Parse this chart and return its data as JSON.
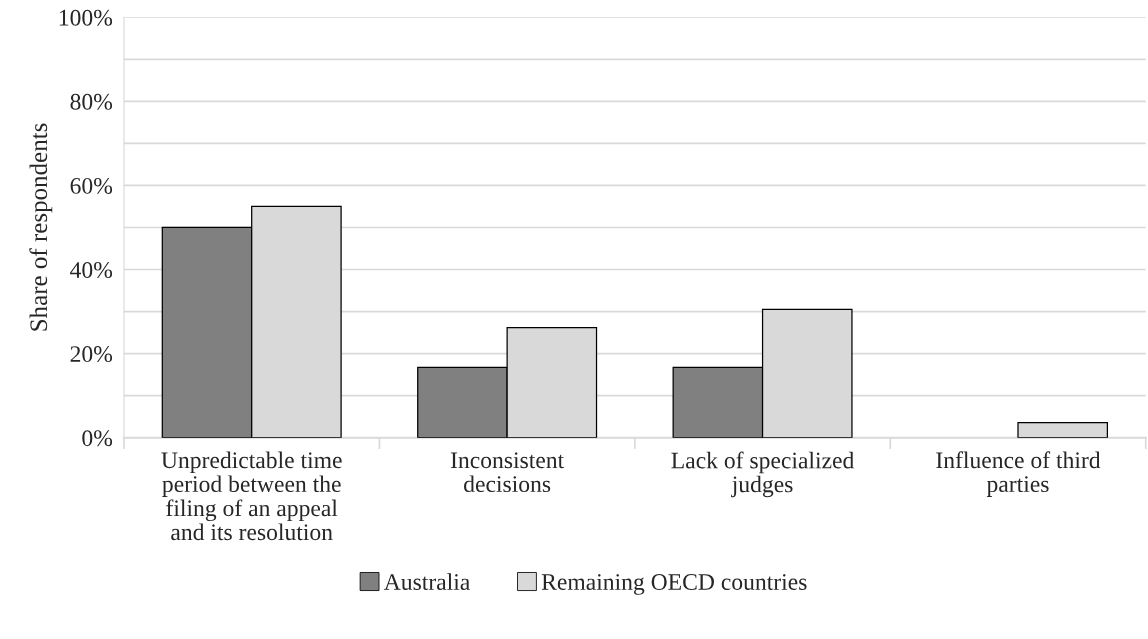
{
  "chart_data": {
    "type": "bar",
    "ylabel": "Share of respondents",
    "categories": [
      "Unpredictable time\nperiod between the\nfiling of an appeal\nand its resolution",
      "Inconsistent\ndecisions",
      "Lack of specialized\njudges",
      "Influence of third\nparties"
    ],
    "series": [
      {
        "name": "Australia",
        "color": "#808080",
        "values": [
          50,
          16.7,
          16.7,
          0
        ]
      },
      {
        "name": "Remaining OECD countries",
        "color": "#d9d9d9",
        "values": [
          55,
          26.2,
          30.5,
          3.6
        ]
      }
    ],
    "ylim": [
      0,
      100
    ],
    "yticks": [
      {
        "value": 0,
        "label": "0%"
      },
      {
        "value": 10,
        "label": null
      },
      {
        "value": 20,
        "label": "20%"
      },
      {
        "value": 30,
        "label": null
      },
      {
        "value": 40,
        "label": "40%"
      },
      {
        "value": 50,
        "label": null
      },
      {
        "value": 60,
        "label": "60%"
      },
      {
        "value": 70,
        "label": null
      },
      {
        "value": 80,
        "label": "80%"
      },
      {
        "value": 90,
        "label": null
      },
      {
        "value": 100,
        "label": "100%"
      }
    ],
    "grid": "y",
    "legend": "bottom"
  }
}
